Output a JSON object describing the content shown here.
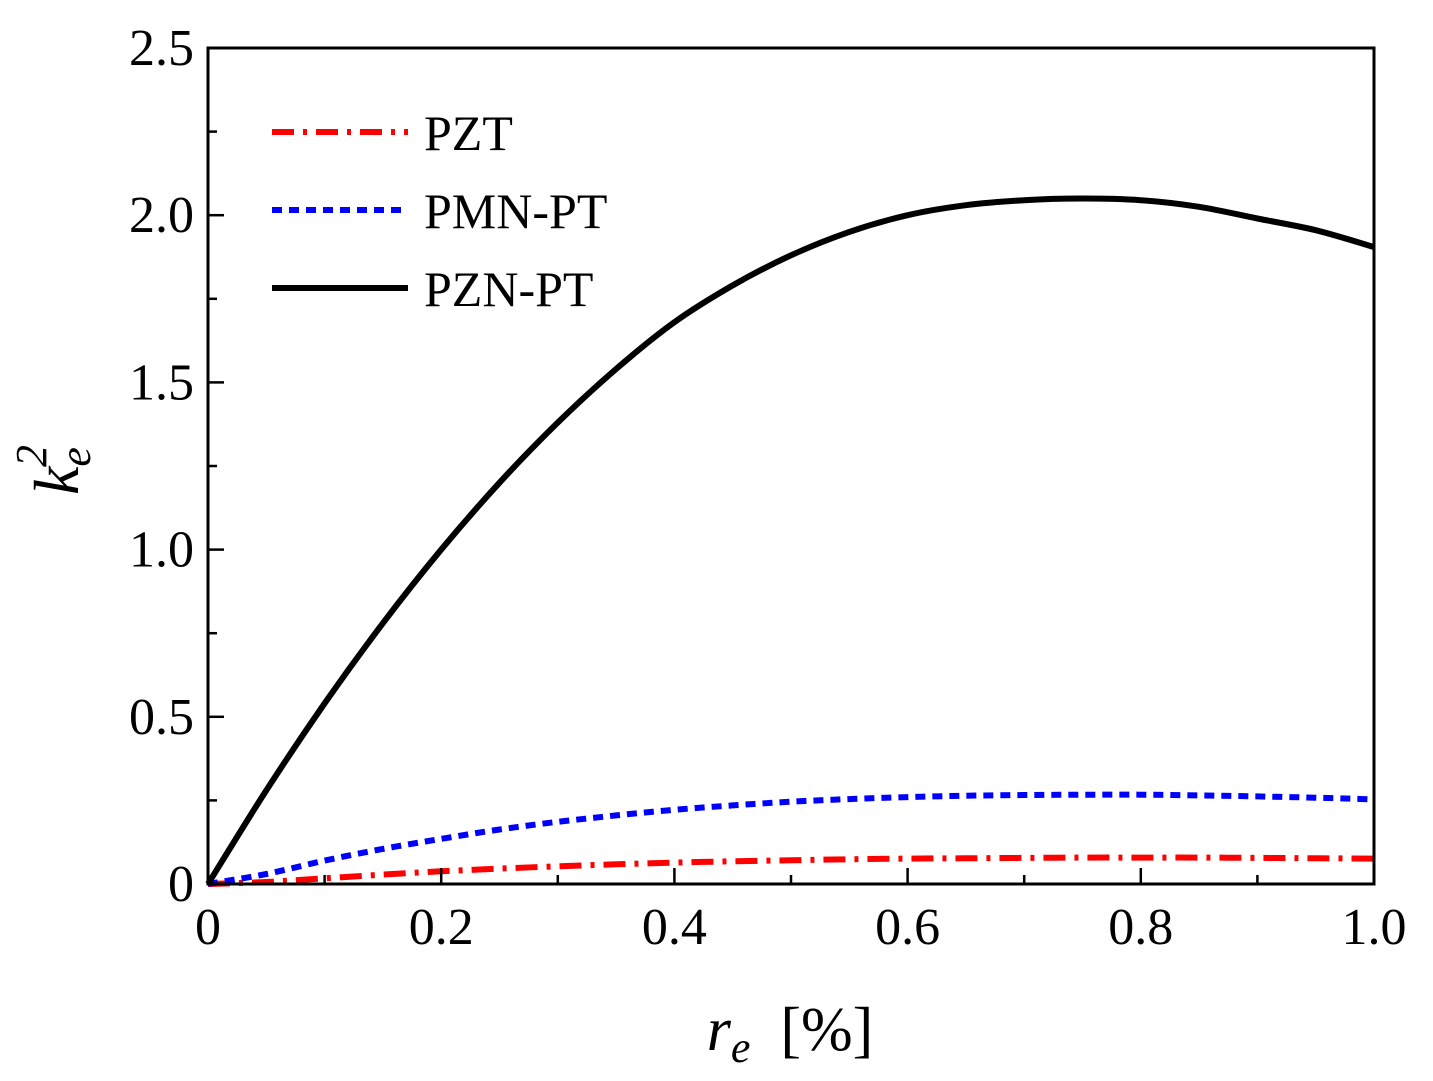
{
  "chart_data": {
    "type": "line",
    "xlabel": {
      "main": "r",
      "sub": "e",
      "unit": "[%]"
    },
    "ylabel": {
      "main": "k",
      "sub": "e",
      "sup": "2"
    },
    "xlim": [
      0,
      1.0
    ],
    "ylim": [
      0,
      2.5
    ],
    "xticks": [
      0,
      0.2,
      0.4,
      0.6,
      0.8,
      1.0
    ],
    "xtick_labels": [
      "0",
      "0.2",
      "0.4",
      "0.6",
      "0.8",
      "1.0"
    ],
    "yticks": [
      0,
      0.5,
      1.0,
      1.5,
      2.0,
      2.5
    ],
    "ytick_labels": [
      "0",
      "0.5",
      "1.0",
      "1.5",
      "2.0",
      "2.5"
    ],
    "grid": false,
    "legend_position": "top-left",
    "series": [
      {
        "name": "PZT",
        "color": "#ff0000",
        "style": "dash-dot",
        "x": [
          0,
          0.05,
          0.1,
          0.15,
          0.2,
          0.25,
          0.3,
          0.35,
          0.4,
          0.45,
          0.5,
          0.55,
          0.6,
          0.65,
          0.7,
          0.75,
          0.8,
          0.85,
          0.9,
          0.95,
          1.0
        ],
        "y": [
          0,
          0.006,
          0.017,
          0.028,
          0.038,
          0.046,
          0.053,
          0.059,
          0.064,
          0.068,
          0.071,
          0.074,
          0.076,
          0.077,
          0.078,
          0.079,
          0.079,
          0.079,
          0.078,
          0.077,
          0.076
        ]
      },
      {
        "name": "PMN-PT",
        "color": "#0000ff",
        "style": "dotted",
        "x": [
          0,
          0.05,
          0.1,
          0.15,
          0.2,
          0.25,
          0.3,
          0.35,
          0.4,
          0.45,
          0.5,
          0.55,
          0.6,
          0.65,
          0.7,
          0.75,
          0.8,
          0.85,
          0.9,
          0.95,
          1.0
        ],
        "y": [
          0,
          0.03,
          0.07,
          0.105,
          0.135,
          0.163,
          0.186,
          0.205,
          0.222,
          0.235,
          0.246,
          0.254,
          0.26,
          0.264,
          0.266,
          0.267,
          0.267,
          0.265,
          0.262,
          0.258,
          0.253
        ]
      },
      {
        "name": "PZN-PT",
        "color": "#000000",
        "style": "solid",
        "x": [
          0,
          0.05,
          0.1,
          0.15,
          0.2,
          0.25,
          0.3,
          0.35,
          0.4,
          0.45,
          0.5,
          0.55,
          0.6,
          0.65,
          0.7,
          0.75,
          0.8,
          0.85,
          0.9,
          0.95,
          1.0
        ],
        "y": [
          0,
          0.28,
          0.54,
          0.78,
          1.0,
          1.2,
          1.38,
          1.54,
          1.68,
          1.79,
          1.88,
          1.95,
          2.0,
          2.03,
          2.045,
          2.05,
          2.045,
          2.025,
          1.99,
          1.955,
          1.905
        ]
      }
    ]
  }
}
